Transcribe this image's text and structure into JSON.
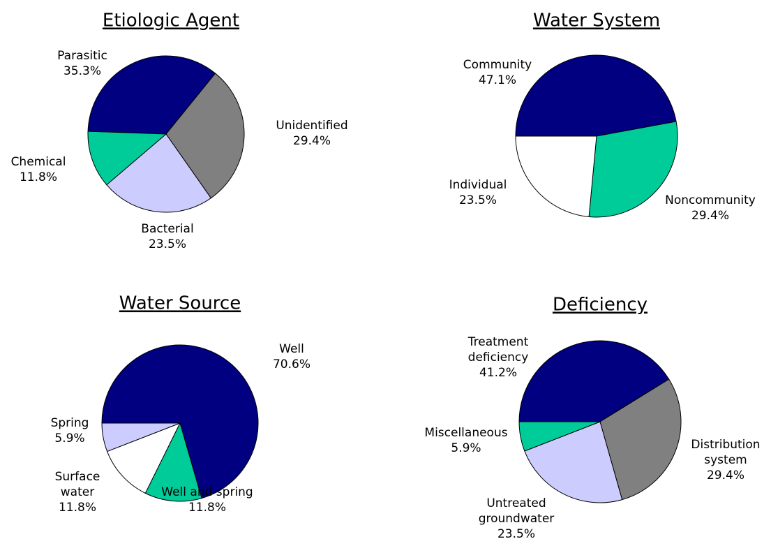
{
  "chart_data": [
    {
      "type": "pie",
      "title": "Etiologic Agent",
      "categories": [
        "Parasitic",
        "Unidentified",
        "Bacterial",
        "Chemical"
      ],
      "values": [
        35.3,
        29.4,
        23.5,
        11.8
      ],
      "value_labels": [
        "35.3%",
        "29.4%",
        "23.5%",
        "11.8%"
      ],
      "colors": [
        "#000080",
        "#808080",
        "#ccccff",
        "#00cc99"
      ]
    },
    {
      "type": "pie",
      "title": "Water System",
      "categories": [
        "Community",
        "Noncommunity",
        "Individual"
      ],
      "values": [
        47.1,
        29.4,
        23.5
      ],
      "value_labels": [
        "47.1%",
        "29.4%",
        "23.5%"
      ],
      "colors": [
        "#000080",
        "#00cc99",
        "#ffffff"
      ]
    },
    {
      "type": "pie",
      "title": "Water Source",
      "categories": [
        "Well",
        "Well and spring",
        "Surface\nwater",
        "Spring"
      ],
      "values": [
        70.6,
        11.8,
        11.8,
        5.9
      ],
      "value_labels": [
        "70.6%",
        "11.8%",
        "11.8%",
        "5.9%"
      ],
      "colors": [
        "#000080",
        "#00cc99",
        "#ffffff",
        "#ccccff"
      ]
    },
    {
      "type": "pie",
      "title": "Deficiency",
      "categories": [
        "Treatment\ndeficiency",
        "Distribution\nsystem",
        "Untreated\ngroundwater",
        "Miscellaneous"
      ],
      "values": [
        41.2,
        29.4,
        23.5,
        5.9
      ],
      "value_labels": [
        "41.2%",
        "29.4%",
        "23.5%",
        "5.9%"
      ],
      "colors": [
        "#000080",
        "#808080",
        "#ccccff",
        "#00cc99"
      ]
    }
  ]
}
